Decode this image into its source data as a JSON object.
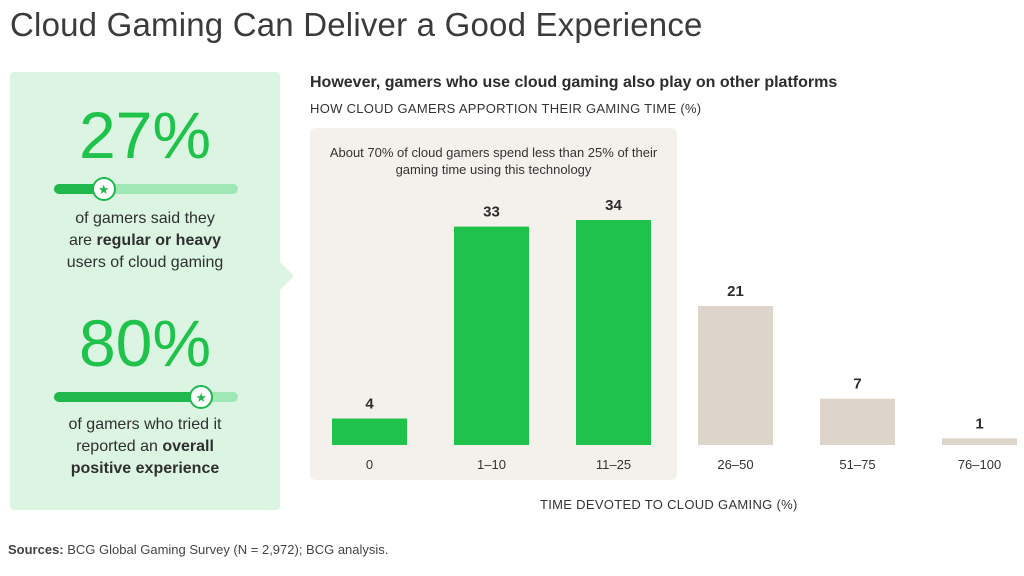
{
  "title": "Cloud Gaming Can Deliver a Good Experience",
  "stats": [
    {
      "value": "27%",
      "desc_pre": "of gamers said they",
      "desc_mid_a": "are ",
      "desc_bold": "regular or heavy",
      "desc_post": "users of cloud gaming",
      "level": 0.27
    },
    {
      "value": "80%",
      "desc_pre": "of gamers who tried it",
      "desc_mid_a": "reported an ",
      "desc_bold": "overall",
      "desc_post": "positive experience",
      "level": 0.8
    }
  ],
  "colors": {
    "green": "#1fc24a",
    "beige": "#ddd5cb",
    "panel": "#dcf5e3",
    "highlight": "#f4f1ec"
  },
  "chart_data": {
    "type": "bar",
    "title": "However, gamers who use cloud gaming also play on other platforms",
    "subtitle": "HOW CLOUD GAMERS APPORTION THEIR GAMING TIME (%)",
    "xlabel": "TIME DEVOTED TO CLOUD GAMING (%)",
    "ylabel": "",
    "categories": [
      "0",
      "1–10",
      "11–25",
      "26–50",
      "51–75",
      "76–100"
    ],
    "values": [
      4,
      33,
      34,
      21,
      7,
      1
    ],
    "highlighted": [
      true,
      true,
      true,
      false,
      false,
      false
    ],
    "annotation": "About 70% of cloud gamers spend less than 25% of their gaming time using this technology",
    "ylim": [
      0,
      34
    ]
  },
  "sources": {
    "label": "Sources:",
    "text": " BCG Global Gaming Survey (N = 2,972); BCG analysis."
  }
}
